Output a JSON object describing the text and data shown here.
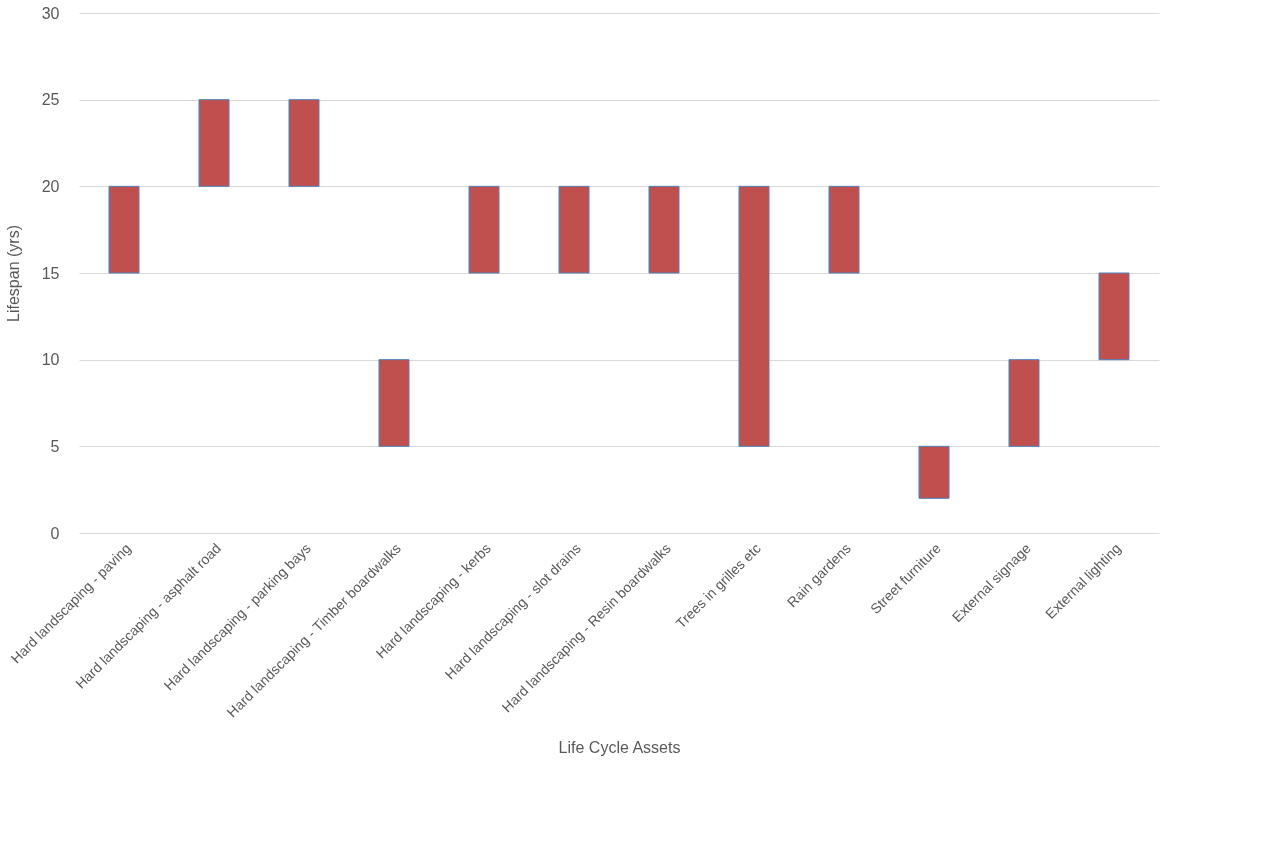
{
  "chart_data": {
    "type": "bar",
    "xlabel": "Life Cycle Assets",
    "ylabel": "Lifespan (yrs)",
    "categories": [
      "Hard landscaping - paving",
      "Hard landscaping - asphalt road",
      "Hard landscaping - parking bays",
      "Hard landscaping - Timber boardwalks",
      "Hard landscaping - kerbs",
      "Hard landscaping - slot drains",
      "Hard landscaping - Resin boardwalks",
      "Trees in grilles etc",
      "Rain gardens",
      "Street furniture",
      "External signage",
      "External lighting"
    ],
    "base": [
      15,
      20,
      20,
      5,
      15,
      15,
      15,
      5,
      15,
      2,
      5,
      10
    ],
    "values": [
      5,
      5,
      5,
      5,
      5,
      5,
      5,
      15,
      5,
      3,
      5,
      5
    ],
    "color": "#c0504d",
    "ylim": [
      0,
      30
    ],
    "yticks": [
      0,
      5,
      10,
      15,
      20,
      25,
      30
    ],
    "grid": "y"
  }
}
